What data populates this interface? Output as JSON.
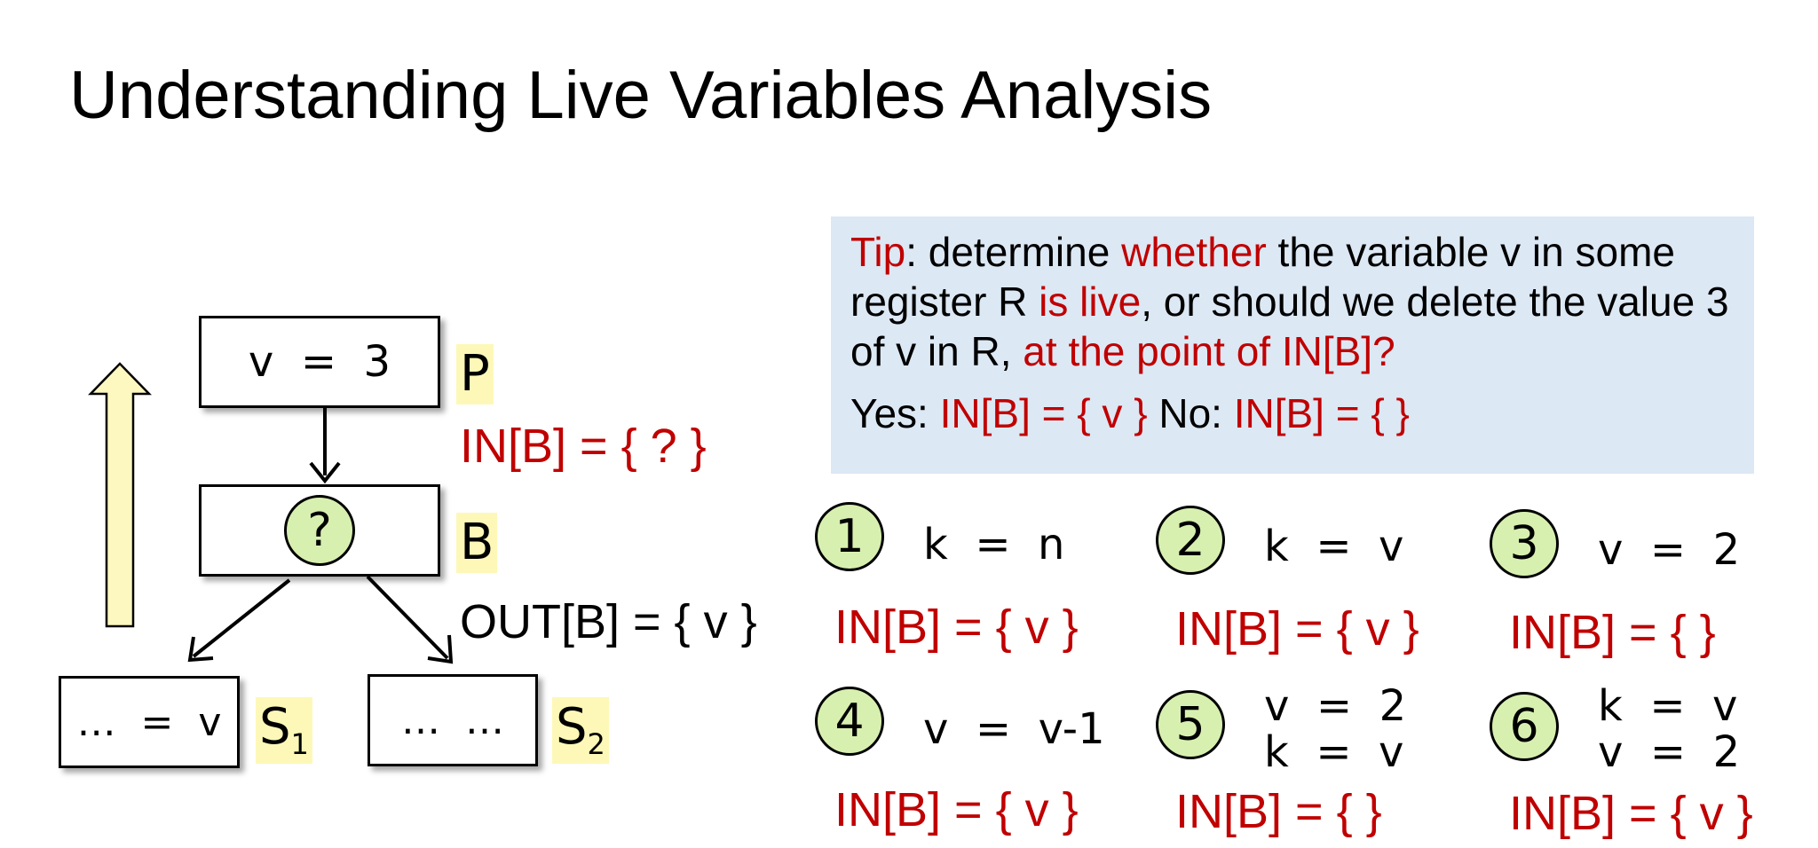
{
  "title": "Understanding Live Variables Analysis",
  "diagram": {
    "block_p": "v  =  3",
    "label_p": "P",
    "in_b_question": "IN[B] = { ? }",
    "block_b_symbol": "?",
    "label_b": "B",
    "out_b": "OUT[B] = { v }",
    "block_s1": "…  =  v",
    "label_s1": "S",
    "label_s1_sub": "1",
    "block_s2": "…  …",
    "label_s2": "S",
    "label_s2_sub": "2"
  },
  "tip": {
    "tip_word": "Tip",
    "part1": ": determine ",
    "whether": "whether",
    "part2": " the variable v in some register R ",
    "is_live": "is live",
    "part3": ", or should we delete the value 3 of v in R, ",
    "at_point": "at the point of IN[B]?",
    "yes_label": "Yes: ",
    "yes_value": "IN[B] = { v }",
    "no_label": " No: ",
    "no_value": "IN[B] = { }"
  },
  "cases": [
    {
      "num": "1",
      "code": "k  =  n",
      "result": "IN[B] = { v }"
    },
    {
      "num": "2",
      "code": "k  =  v",
      "result": "IN[B] = { v }"
    },
    {
      "num": "3",
      "code": "v  =  2",
      "result": "IN[B] = {  }"
    },
    {
      "num": "4",
      "code": "v  =  v-1",
      "result": "IN[B] = { v }"
    },
    {
      "num": "5",
      "code": "v  =  2\nk  =  v",
      "result": "IN[B] = {   }"
    },
    {
      "num": "6",
      "code": "k  =  v\nv  =  2",
      "result": "IN[B] = { v }"
    }
  ],
  "colors": {
    "accent_red": "#c00000",
    "tip_bg": "#dce8f4",
    "highlight": "#fdf8b8",
    "circle_fill": "#d7f0b0",
    "up_arrow": "#fdf8c0"
  }
}
